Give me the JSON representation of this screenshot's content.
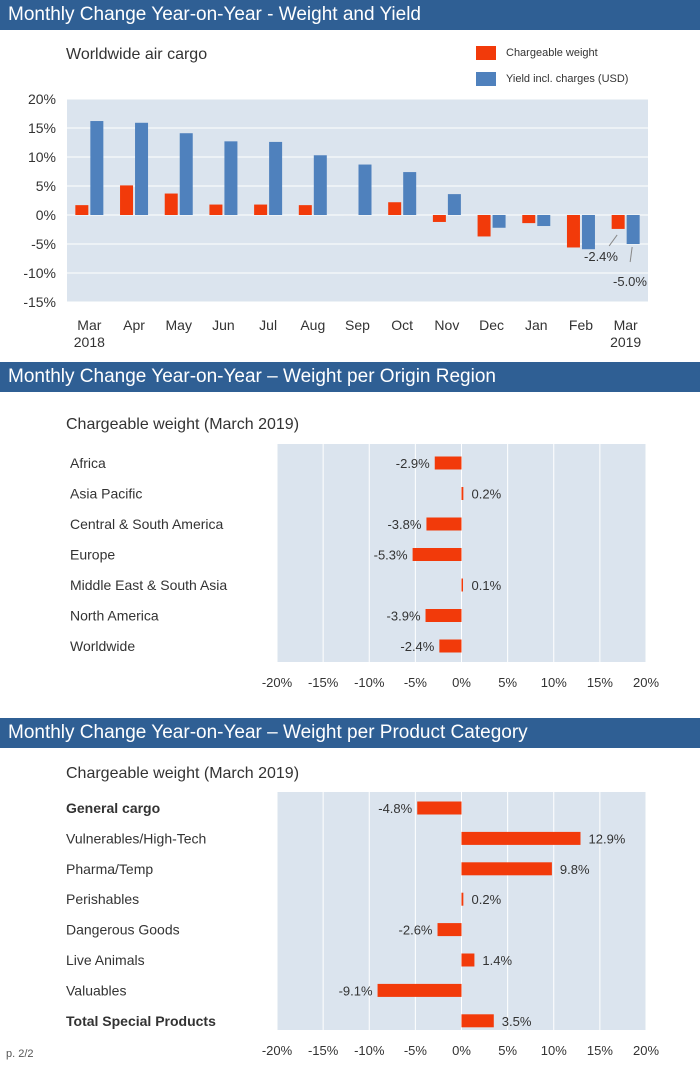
{
  "colors": {
    "banner": "#2f5f94",
    "weight": "#f23a0a",
    "yield": "#4f81bd",
    "plot_bg": "#dbe4ee",
    "grid": "#ffffff"
  },
  "sections": {
    "weight_yield": {
      "banner": "Monthly Change Year-on-Year - Weight and Yield"
    },
    "origin_region": {
      "banner": "Monthly Change Year-on-Year – Weight per Origin Region"
    },
    "product_category": {
      "banner": "Monthly Change Year-on-Year – Weight per Product Category"
    }
  },
  "page_number": "p. 2/2",
  "chart_data": [
    {
      "type": "bar",
      "title": "Worldwide air cargo",
      "categories": [
        [
          "Mar",
          "2018"
        ],
        [
          "Apr",
          ""
        ],
        [
          "May",
          ""
        ],
        [
          "Jun",
          ""
        ],
        [
          "Jul",
          ""
        ],
        [
          "Aug",
          ""
        ],
        [
          "Sep",
          ""
        ],
        [
          "Oct",
          ""
        ],
        [
          "Nov",
          ""
        ],
        [
          "Dec",
          ""
        ],
        [
          "Jan",
          ""
        ],
        [
          "Feb",
          ""
        ],
        [
          "Mar",
          "2019"
        ]
      ],
      "series": [
        {
          "name": "Chargeable weight",
          "values": [
            1.7,
            5.1,
            3.7,
            1.8,
            1.8,
            1.7,
            0.0,
            2.2,
            -1.2,
            -3.7,
            -1.4,
            -5.6,
            -2.4
          ]
        },
        {
          "name": "Yield incl. charges (USD)",
          "values": [
            16.2,
            15.9,
            14.1,
            12.7,
            12.6,
            10.3,
            8.7,
            7.4,
            3.6,
            -2.2,
            -1.9,
            -5.9,
            -5.0
          ]
        }
      ],
      "annotations": [
        {
          "series": 0,
          "index": 12,
          "text": "-2.4%"
        },
        {
          "series": 1,
          "index": 12,
          "text": "-5.0%"
        }
      ],
      "ylim": [
        -15,
        20
      ],
      "yticks": [
        "20%",
        "15%",
        "10%",
        "5%",
        "0%",
        "-5%",
        "-10%",
        "-15%"
      ],
      "ytick_values": [
        20,
        15,
        10,
        5,
        0,
        -5,
        -10,
        -15
      ],
      "legend_position": "top-right",
      "grid": true
    },
    {
      "type": "bar",
      "orientation": "horizontal",
      "title": "Chargeable weight (March 2019)",
      "categories": [
        "Africa",
        "Asia Pacific",
        "Central & South America",
        "Europe",
        "Middle East & South Asia",
        "North America",
        "Worldwide"
      ],
      "bold": [
        false,
        false,
        false,
        false,
        false,
        false,
        false
      ],
      "values": [
        -2.9,
        0.2,
        -3.8,
        -5.3,
        0.1,
        -3.9,
        -2.4
      ],
      "labels": [
        "-2.9%",
        "0.2%",
        "-3.8%",
        "-5.3%",
        "0.1%",
        "-3.9%",
        "-2.4%"
      ],
      "xlim": [
        -20,
        20
      ],
      "xticks": [
        "-20%",
        "-15%",
        "-10%",
        "-5%",
        "0%",
        "5%",
        "10%",
        "15%",
        "20%"
      ],
      "xtick_values": [
        -20,
        -15,
        -10,
        -5,
        0,
        5,
        10,
        15,
        20
      ],
      "grid": true
    },
    {
      "type": "bar",
      "orientation": "horizontal",
      "title": "Chargeable weight (March 2019)",
      "categories": [
        "General cargo",
        "Vulnerables/High-Tech",
        "Pharma/Temp",
        "Perishables",
        "Dangerous Goods",
        "Live Animals",
        "Valuables",
        "Total Special Products"
      ],
      "bold": [
        true,
        false,
        false,
        false,
        false,
        false,
        false,
        true
      ],
      "values": [
        -4.8,
        12.9,
        9.8,
        0.2,
        -2.6,
        1.4,
        -9.1,
        3.5
      ],
      "labels": [
        "-4.8%",
        "12.9%",
        "9.8%",
        "0.2%",
        "-2.6%",
        "1.4%",
        "-9.1%",
        "3.5%"
      ],
      "xlim": [
        -20,
        20
      ],
      "xticks": [
        "-20%",
        "-15%",
        "-10%",
        "-5%",
        "0%",
        "5%",
        "10%",
        "15%",
        "20%"
      ],
      "xtick_values": [
        -20,
        -15,
        -10,
        -5,
        0,
        5,
        10,
        15,
        20
      ],
      "grid": true
    }
  ]
}
